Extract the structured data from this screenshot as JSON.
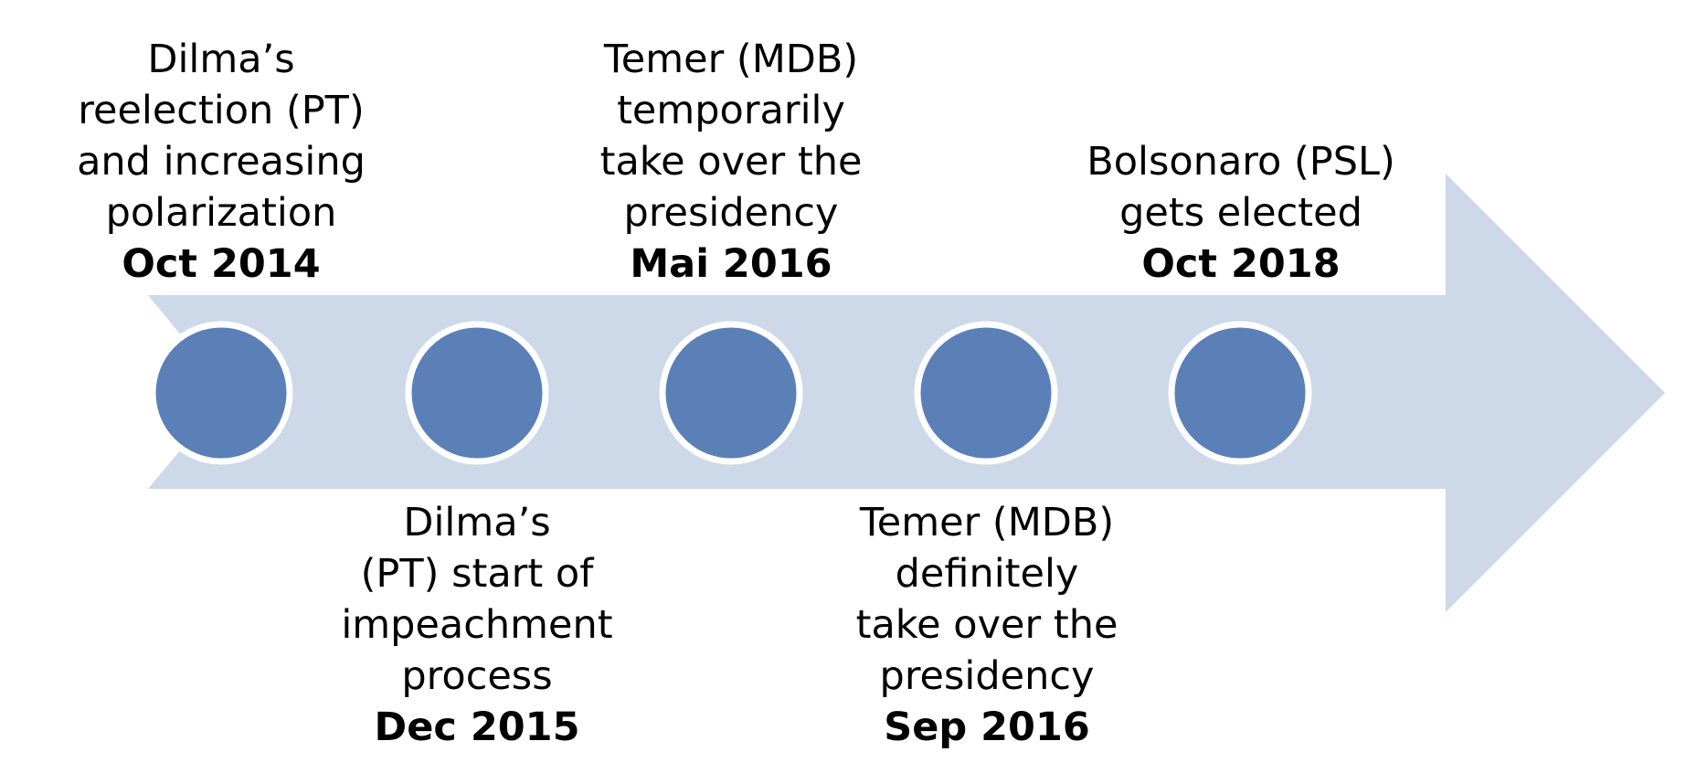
{
  "colors": {
    "arrow": "#cdd9e8",
    "node": "#5b80b8",
    "node_border": "#ffffff",
    "text": "#000000"
  },
  "events": [
    {
      "lines": [
        "Dilma’s",
        "reelection (PT)",
        "and increasing",
        "polarization"
      ],
      "date": "Oct 2014",
      "placement": "above"
    },
    {
      "lines": [
        "Dilma’s",
        "(PT) start of",
        "impeachment",
        "process"
      ],
      "date": "Dec 2015",
      "placement": "below"
    },
    {
      "lines": [
        "Temer (MDB)",
        "temporarily",
        "take over the",
        "presidency"
      ],
      "date": "Mai 2016",
      "placement": "above"
    },
    {
      "lines": [
        "Temer (MDB)",
        "definitely",
        "take over the",
        "presidency"
      ],
      "date": "Sep 2016",
      "placement": "below"
    },
    {
      "lines": [
        "Bolsonaro (PSL)",
        "gets elected"
      ],
      "date": "Oct 2018",
      "placement": "above"
    }
  ]
}
